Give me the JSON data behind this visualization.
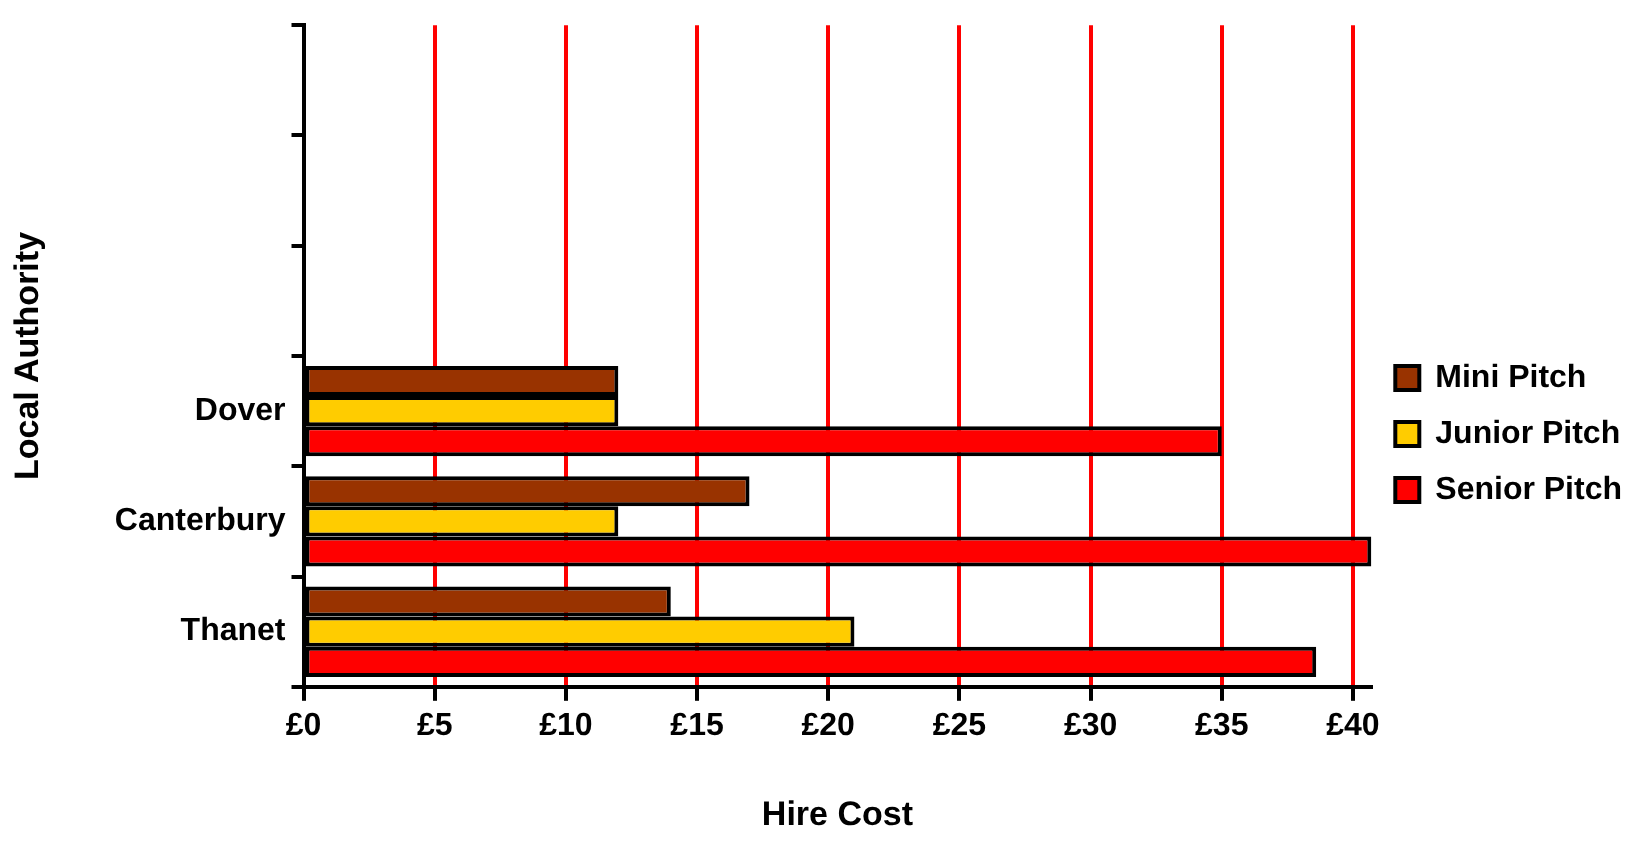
{
  "chart_data": {
    "type": "bar",
    "orientation": "horizontal",
    "xlabel": "Hire Cost",
    "ylabel": "Local Authority",
    "categories": [
      null,
      null,
      null,
      "Dover",
      "Canterbury",
      "Thanet"
    ],
    "series": [
      {
        "name": "Mini Pitch",
        "color": "#993300",
        "values": [
          null,
          null,
          null,
          12,
          17,
          14
        ]
      },
      {
        "name": "Junior Pitch",
        "color": "#ffcc00",
        "values": [
          null,
          null,
          null,
          12,
          12,
          21
        ]
      },
      {
        "name": "Senior Pitch",
        "color": "#ff0000",
        "values": [
          null,
          null,
          null,
          35,
          40.7,
          38.6
        ]
      }
    ],
    "xlim": [
      0,
      40.7
    ],
    "xticks": [
      {
        "value": 0,
        "label": "£0"
      },
      {
        "value": 5,
        "label": "£5"
      },
      {
        "value": 10,
        "label": "£10"
      },
      {
        "value": 15,
        "label": "£15"
      },
      {
        "value": 20,
        "label": "£20"
      },
      {
        "value": 25,
        "label": "£25"
      },
      {
        "value": 30,
        "label": "£30"
      },
      {
        "value": 35,
        "label": "£35"
      },
      {
        "value": 40,
        "label": "£40"
      }
    ],
    "grid": "x",
    "legend": "right"
  }
}
